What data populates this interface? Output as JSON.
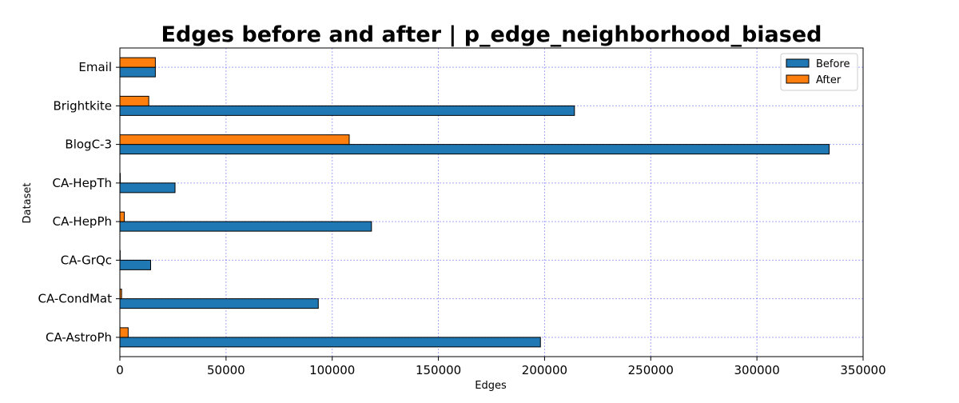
{
  "chart_data": {
    "type": "bar",
    "orientation": "horizontal",
    "title": "Edges before and after | p_edge_neighborhood_biased",
    "xlabel": "Edges",
    "ylabel": "Dataset",
    "categories": [
      "CA-AstroPh",
      "CA-CondMat",
      "CA-GrQc",
      "CA-HepPh",
      "CA-HepTh",
      "BlogC-3",
      "Brightkite",
      "Email"
    ],
    "series": [
      {
        "name": "Before",
        "color": "#1f77b4",
        "values": [
          198050,
          93439,
          14484,
          118489,
          25973,
          334012,
          214078,
          16706
        ]
      },
      {
        "name": "After",
        "color": "#ff7f0e",
        "values": [
          3900,
          800,
          150,
          2100,
          200,
          108000,
          13600,
          16706
        ]
      }
    ],
    "xlim": [
      0,
      350000
    ],
    "xticks": [
      0,
      50000,
      100000,
      150000,
      200000,
      250000,
      300000,
      350000
    ],
    "xtick_labels": [
      "0",
      "50000",
      "100000",
      "150000",
      "200000",
      "250000",
      "300000",
      "350000"
    ],
    "grid": true,
    "grid_color": "#0000ff",
    "legend_position": "top-right"
  }
}
